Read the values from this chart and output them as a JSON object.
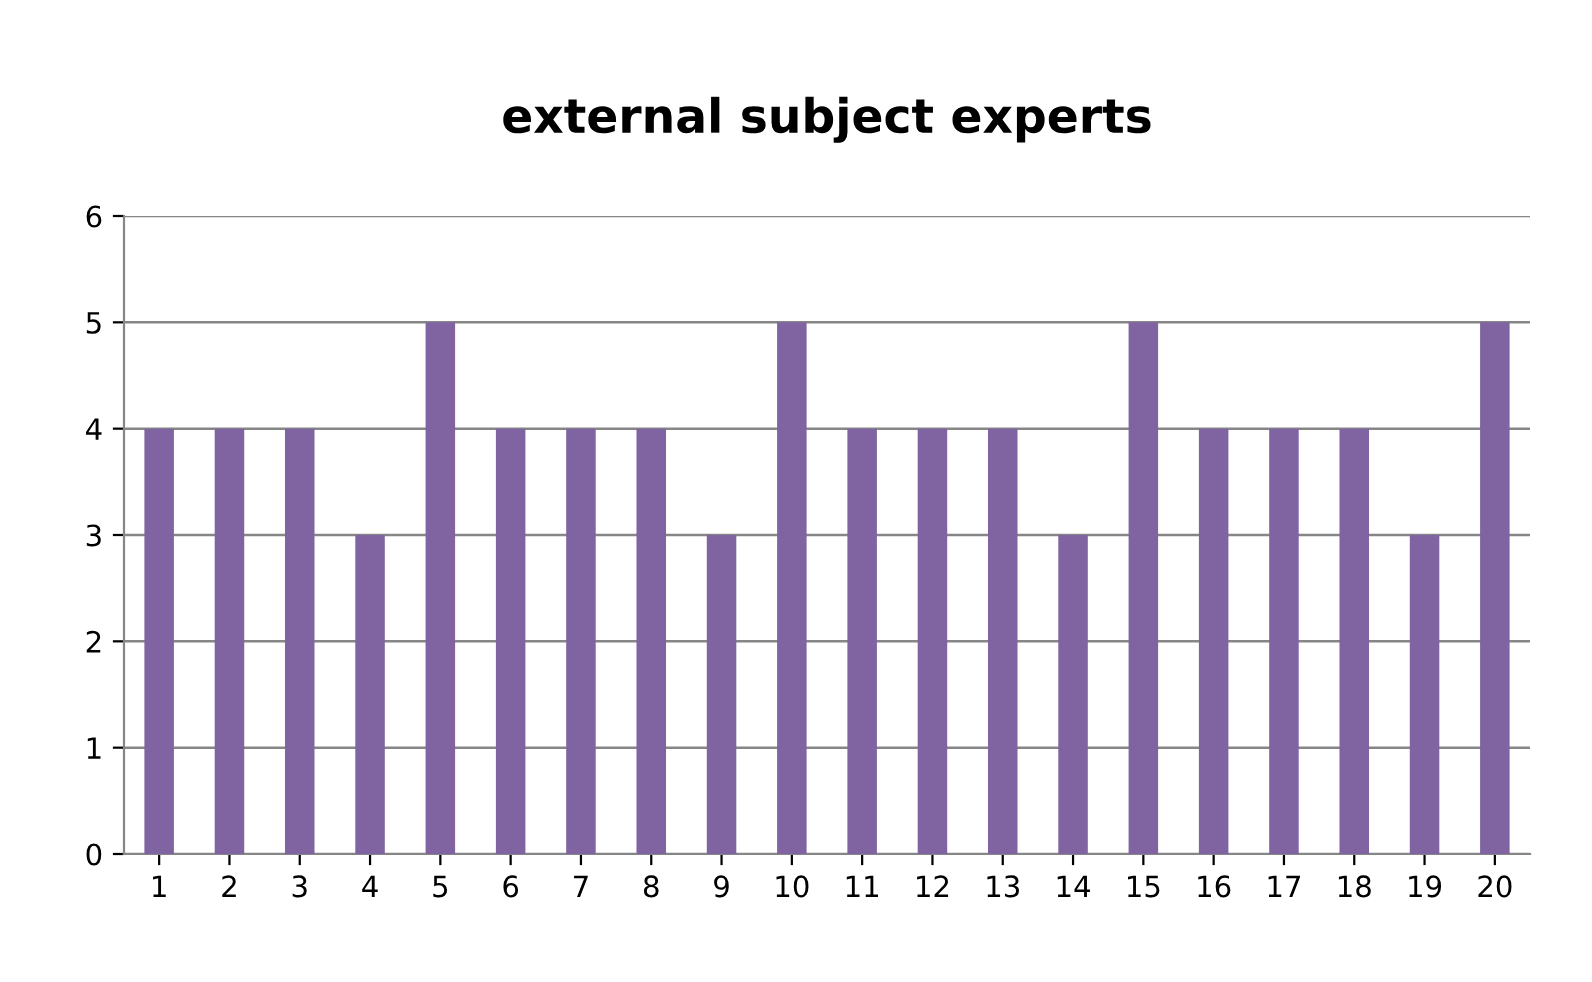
{
  "chart_data": {
    "type": "bar",
    "title": "external subject experts",
    "categories": [
      "1",
      "2",
      "3",
      "4",
      "5",
      "6",
      "7",
      "8",
      "9",
      "10",
      "11",
      "12",
      "13",
      "14",
      "15",
      "16",
      "17",
      "18",
      "19",
      "20"
    ],
    "values": [
      4,
      4,
      4,
      3,
      5,
      4,
      4,
      4,
      3,
      5,
      4,
      4,
      4,
      3,
      5,
      4,
      4,
      4,
      3,
      5
    ],
    "color": "#8064a2",
    "ylim": [
      0,
      6
    ],
    "yticks": [
      0,
      1,
      2,
      3,
      4,
      5,
      6
    ],
    "grid": "y",
    "legend": false
  }
}
